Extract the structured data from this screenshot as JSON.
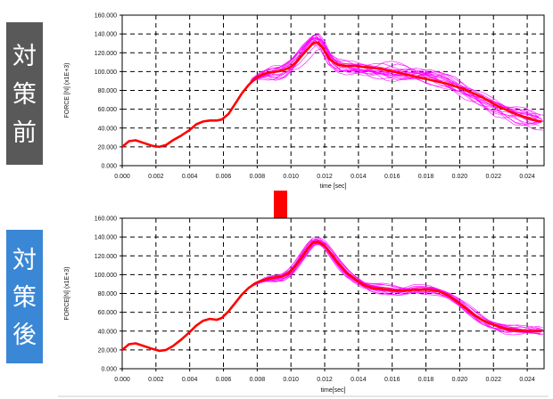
{
  "panel_labels": {
    "before": [
      "対",
      "策",
      "前"
    ],
    "after": [
      "対",
      "策",
      "後"
    ]
  },
  "colors": {
    "before_label_bg": "#595959",
    "after_label_bg": "#3a87d6",
    "arrow": "#ff0000",
    "thin_curves": "#ff00ff",
    "main_curve": "#ff0000",
    "grid": "#000000"
  },
  "chart_data": [
    {
      "type": "line",
      "panel": "before",
      "title": "",
      "xlabel": "time [sec]",
      "ylabel": "FORCE [N] (x1E+3)",
      "xlim": [
        0.0,
        0.025
      ],
      "ylim": [
        0,
        160
      ],
      "x_ticks": [
        "0.000",
        "0.002",
        "0.004",
        "0.006",
        "0.008",
        "0.010",
        "0.012",
        "0.014",
        "0.016",
        "0.018",
        "0.020",
        "0.022",
        "0.024"
      ],
      "y_ticks": [
        "0.000",
        "20.000",
        "40.000",
        "60.000",
        "80.000",
        "100.000",
        "120.000",
        "140.000",
        "160.000"
      ],
      "grid": true,
      "series": [
        {
          "role": "representative",
          "color": "#ff0000",
          "x": [
            0,
            0.0004,
            0.0008,
            0.0013,
            0.0018,
            0.0022,
            0.0026,
            0.003,
            0.0035,
            0.004,
            0.0044,
            0.0048,
            0.0052,
            0.0056,
            0.0059,
            0.0063,
            0.0067,
            0.0071,
            0.0075,
            0.0079,
            0.0083,
            0.0087,
            0.0091,
            0.0095,
            0.0099,
            0.0103,
            0.0107,
            0.011,
            0.0113,
            0.0116,
            0.0119,
            0.0123,
            0.0128,
            0.0133,
            0.0138,
            0.0143,
            0.0148,
            0.0153,
            0.0158,
            0.0163,
            0.0168,
            0.0173,
            0.0178,
            0.0183,
            0.0188,
            0.0193,
            0.0198,
            0.0203,
            0.0208,
            0.0213,
            0.0218,
            0.0223,
            0.0228,
            0.0233,
            0.0238,
            0.0243,
            0.0248
          ],
          "y": [
            20,
            26,
            27,
            24,
            21,
            20,
            22,
            27,
            32,
            38,
            44,
            47,
            48,
            48,
            49,
            55,
            66,
            77,
            86,
            93,
            97,
            99,
            100,
            101,
            104,
            110,
            118,
            124,
            130,
            131,
            125,
            113,
            107,
            106,
            106,
            105,
            104,
            103,
            101,
            99,
            97,
            95,
            93,
            91,
            89,
            87,
            84,
            81,
            77,
            73,
            68,
            63,
            59,
            55,
            52,
            49,
            47
          ]
        }
      ]
    },
    {
      "type": "line",
      "panel": "after",
      "title": "",
      "xlabel": "time[sec]",
      "ylabel": "FORCE[N] (x1E+3)",
      "xlim": [
        0.0,
        0.025
      ],
      "ylim": [
        0,
        160
      ],
      "x_ticks": [
        "0.000",
        "0.002",
        "0.004",
        "0.006",
        "0.008",
        "0.010",
        "0.012",
        "0.014",
        "0.016",
        "0.018",
        "0.020",
        "0.022",
        "0.024"
      ],
      "y_ticks": [
        "0.000",
        "20.000",
        "40.000",
        "60.000",
        "80.000",
        "100.000",
        "120.000",
        "140.000",
        "160.000"
      ],
      "grid": true,
      "series": [
        {
          "role": "representative",
          "color": "#ff0000",
          "x": [
            0,
            0.0004,
            0.0008,
            0.0013,
            0.0018,
            0.0022,
            0.0026,
            0.003,
            0.0035,
            0.004,
            0.0044,
            0.0048,
            0.0052,
            0.0056,
            0.0059,
            0.0063,
            0.0067,
            0.0071,
            0.0075,
            0.0079,
            0.0083,
            0.0087,
            0.0091,
            0.0095,
            0.0099,
            0.0103,
            0.0107,
            0.011,
            0.0113,
            0.0116,
            0.0119,
            0.0123,
            0.0128,
            0.0133,
            0.0138,
            0.0143,
            0.0148,
            0.0153,
            0.0158,
            0.0163,
            0.0168,
            0.0173,
            0.0178,
            0.0183,
            0.0188,
            0.0193,
            0.0198,
            0.0203,
            0.0208,
            0.0213,
            0.0218,
            0.0223,
            0.0228,
            0.0233,
            0.0238,
            0.0243,
            0.0248
          ],
          "y": [
            20,
            26,
            27,
            24,
            21,
            19,
            20,
            24,
            31,
            39,
            46,
            51,
            53,
            52,
            54,
            61,
            70,
            79,
            86,
            91,
            94,
            96,
            97,
            98,
            102,
            110,
            120,
            128,
            134,
            135,
            132,
            124,
            112,
            102,
            95,
            89,
            86,
            85,
            84,
            83,
            83,
            84,
            84,
            84,
            82,
            78,
            72,
            65,
            58,
            52,
            48,
            45,
            42,
            41,
            40,
            40,
            40
          ]
        }
      ]
    }
  ]
}
